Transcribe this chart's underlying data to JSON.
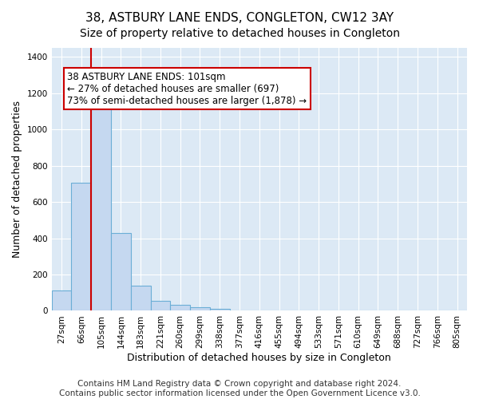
{
  "title": "38, ASTBURY LANE ENDS, CONGLETON, CW12 3AY",
  "subtitle": "Size of property relative to detached houses in Congleton",
  "xlabel": "Distribution of detached houses by size in Congleton",
  "ylabel": "Number of detached properties",
  "bar_labels": [
    "27sqm",
    "66sqm",
    "105sqm",
    "144sqm",
    "183sqm",
    "221sqm",
    "260sqm",
    "299sqm",
    "338sqm",
    "377sqm",
    "416sqm",
    "455sqm",
    "494sqm",
    "533sqm",
    "571sqm",
    "610sqm",
    "649sqm",
    "688sqm",
    "727sqm",
    "766sqm",
    "805sqm"
  ],
  "bar_values": [
    110,
    705,
    1120,
    430,
    140,
    55,
    33,
    18,
    12,
    0,
    0,
    0,
    0,
    0,
    0,
    0,
    0,
    0,
    0,
    0,
    0
  ],
  "bar_color": "#c5d8f0",
  "bar_edge_color": "#6baed6",
  "vline_x_index": 2,
  "vline_color": "#cc0000",
  "annotation_text": "38 ASTBURY LANE ENDS: 101sqm\n← 27% of detached houses are smaller (697)\n73% of semi-detached houses are larger (1,878) →",
  "annotation_box_color": "#ffffff",
  "annotation_box_edge_color": "#cc0000",
  "ylim": [
    0,
    1450
  ],
  "yticks": [
    0,
    200,
    400,
    600,
    800,
    1000,
    1200,
    1400
  ],
  "background_color": "#dce9f5",
  "footer_line1": "Contains HM Land Registry data © Crown copyright and database right 2024.",
  "footer_line2": "Contains public sector information licensed under the Open Government Licence v3.0.",
  "title_fontsize": 11,
  "subtitle_fontsize": 10,
  "axis_label_fontsize": 9,
  "tick_fontsize": 7.5,
  "annotation_fontsize": 8.5,
  "footer_fontsize": 7.5
}
